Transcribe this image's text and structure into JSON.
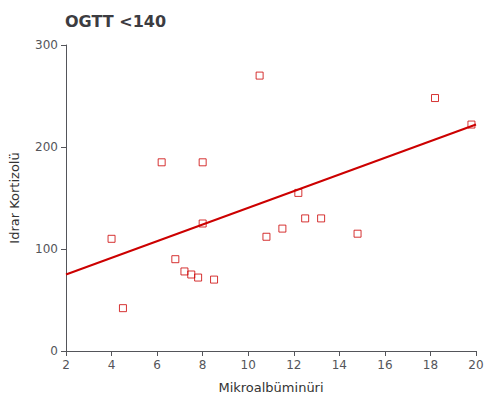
{
  "chart_data": {
    "type": "scatter",
    "title": "OGTT <140",
    "xlabel": "Mikroalbüminüri",
    "ylabel": "Idrar Kortizolü",
    "xlim": [
      2,
      20
    ],
    "ylim": [
      0,
      300
    ],
    "xticks": [
      2,
      4,
      6,
      8,
      10,
      12,
      14,
      16,
      18,
      20
    ],
    "yticks": [
      0,
      100,
      200,
      300
    ],
    "grid": false,
    "series": [
      {
        "type": "scatter",
        "color": "#cc0000",
        "marker": "square",
        "x": [
          4.0,
          4.5,
          6.2,
          6.8,
          7.2,
          7.5,
          7.8,
          8.0,
          8.0,
          8.5,
          10.5,
          10.8,
          11.5,
          12.2,
          12.5,
          13.2,
          14.8,
          18.2,
          19.8
        ],
        "values": [
          110,
          42,
          185,
          90,
          78,
          75,
          72,
          125,
          185,
          70,
          270,
          112,
          120,
          155,
          130,
          130,
          115,
          248,
          222
        ]
      },
      {
        "type": "line",
        "color": "#cc0000",
        "line_style": "solid",
        "x": [
          2.0,
          20.0
        ],
        "values": [
          75,
          222
        ]
      }
    ]
  }
}
